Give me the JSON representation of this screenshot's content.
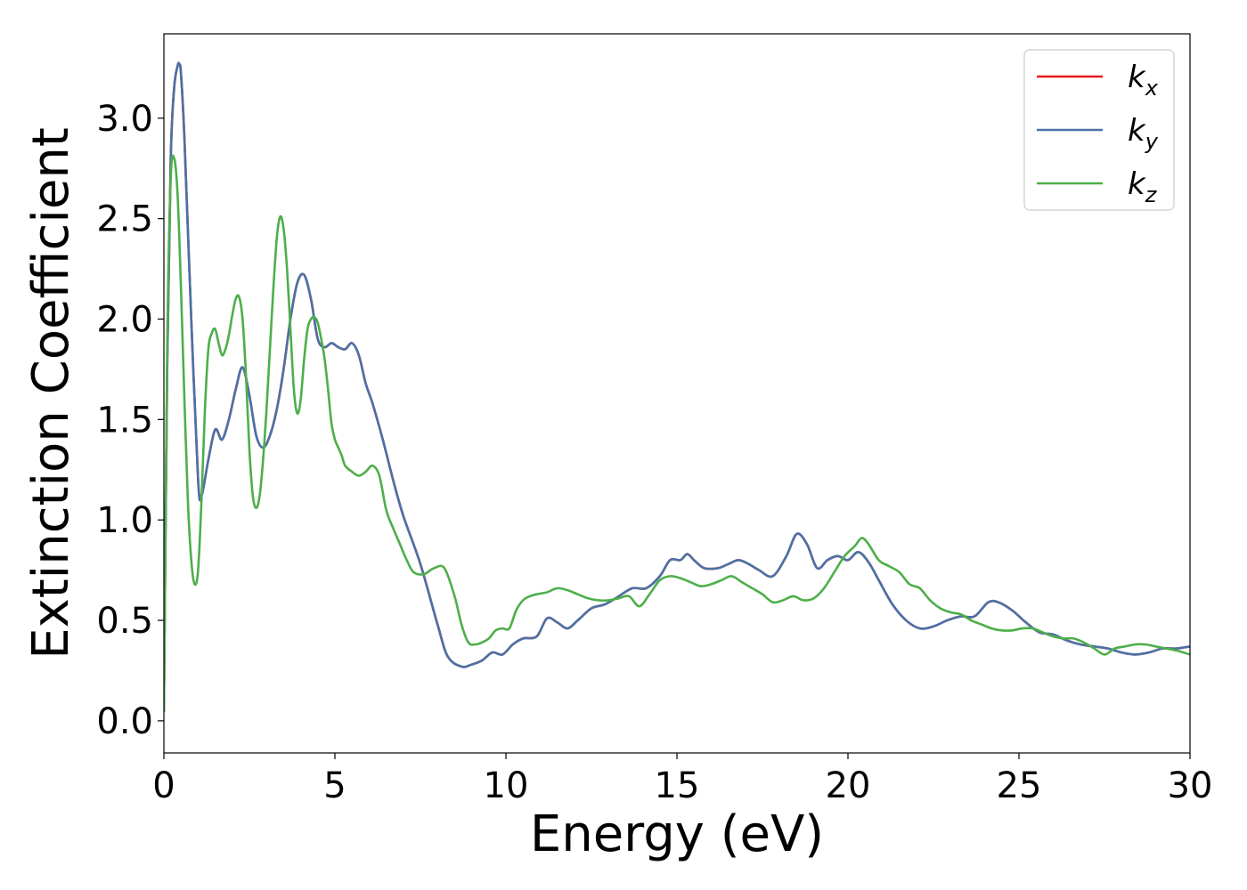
{
  "chart_data": {
    "type": "line",
    "xlabel": "Energy (eV)",
    "ylabel": "Extinction Coefficient",
    "xlim": [
      0,
      30
    ],
    "ylim": [
      -0.16,
      3.42
    ],
    "x_ticks": [
      0,
      5,
      10,
      15,
      20,
      25,
      30
    ],
    "x_tick_labels": [
      "0",
      "5",
      "10",
      "15",
      "20",
      "25",
      "30"
    ],
    "y_ticks": [
      0.0,
      0.5,
      1.0,
      1.5,
      2.0,
      2.5,
      3.0
    ],
    "y_tick_labels": [
      "0.0",
      "0.5",
      "1.0",
      "1.5",
      "2.0",
      "2.5",
      "3.0"
    ],
    "grid": false,
    "legend_position": "top-right",
    "series": [
      {
        "name": "k",
        "subscript": "x",
        "color": "#e41a1c",
        "x": [
          0,
          0.1,
          0.2,
          0.3,
          0.4,
          0.45,
          0.5,
          0.6,
          0.8,
          1.0,
          1.1,
          1.3,
          1.5,
          1.7,
          1.9,
          2.1,
          2.3,
          2.5,
          2.7,
          2.9,
          3.1,
          3.3,
          3.5,
          3.7,
          3.9,
          4.1,
          4.3,
          4.5,
          4.7,
          4.9,
          5.1,
          5.3,
          5.5,
          5.7,
          5.9,
          6.1,
          6.4,
          6.7,
          7.0,
          7.5,
          8.0,
          8.3,
          8.7,
          9.0,
          9.3,
          9.6,
          9.9,
          10.2,
          10.5,
          10.9,
          11.2,
          11.5,
          11.8,
          12.1,
          12.5,
          12.9,
          13.3,
          13.7,
          14.1,
          14.5,
          14.8,
          15.1,
          15.3,
          15.5,
          15.8,
          16.2,
          16.5,
          16.8,
          17.1,
          17.4,
          17.8,
          18.2,
          18.5,
          18.8,
          19.1,
          19.4,
          19.7,
          20.0,
          20.3,
          20.6,
          20.9,
          21.3,
          21.7,
          22.1,
          22.5,
          22.9,
          23.3,
          23.7,
          24.1,
          24.4,
          24.8,
          25.2,
          25.6,
          26.0,
          26.4,
          26.8,
          27.2,
          27.6,
          28.0,
          28.4,
          28.8,
          29.2,
          29.6,
          30.0
        ],
        "values": [
          0.05,
          1.8,
          2.8,
          3.15,
          3.26,
          3.27,
          3.22,
          2.9,
          2.0,
          1.2,
          1.12,
          1.3,
          1.45,
          1.4,
          1.5,
          1.65,
          1.76,
          1.62,
          1.42,
          1.36,
          1.42,
          1.55,
          1.75,
          2.0,
          2.18,
          2.22,
          2.1,
          1.9,
          1.86,
          1.88,
          1.86,
          1.85,
          1.88,
          1.82,
          1.68,
          1.58,
          1.4,
          1.2,
          1.02,
          0.78,
          0.48,
          0.32,
          0.27,
          0.28,
          0.3,
          0.34,
          0.33,
          0.38,
          0.41,
          0.42,
          0.51,
          0.49,
          0.46,
          0.5,
          0.56,
          0.58,
          0.62,
          0.66,
          0.66,
          0.72,
          0.8,
          0.8,
          0.83,
          0.8,
          0.76,
          0.76,
          0.78,
          0.8,
          0.78,
          0.75,
          0.72,
          0.82,
          0.93,
          0.88,
          0.76,
          0.8,
          0.82,
          0.8,
          0.84,
          0.79,
          0.7,
          0.58,
          0.5,
          0.46,
          0.47,
          0.5,
          0.52,
          0.52,
          0.59,
          0.59,
          0.55,
          0.49,
          0.44,
          0.43,
          0.4,
          0.38,
          0.37,
          0.36,
          0.34,
          0.33,
          0.34,
          0.36,
          0.36,
          0.37
        ]
      },
      {
        "name": "k",
        "subscript": "y",
        "color": "#4a72a6",
        "x": [
          0,
          0.1,
          0.2,
          0.3,
          0.4,
          0.45,
          0.5,
          0.6,
          0.8,
          1.0,
          1.1,
          1.3,
          1.5,
          1.7,
          1.9,
          2.1,
          2.3,
          2.5,
          2.7,
          2.9,
          3.1,
          3.3,
          3.5,
          3.7,
          3.9,
          4.1,
          4.3,
          4.5,
          4.7,
          4.9,
          5.1,
          5.3,
          5.5,
          5.7,
          5.9,
          6.1,
          6.4,
          6.7,
          7.0,
          7.5,
          8.0,
          8.3,
          8.7,
          9.0,
          9.3,
          9.6,
          9.9,
          10.2,
          10.5,
          10.9,
          11.2,
          11.5,
          11.8,
          12.1,
          12.5,
          12.9,
          13.3,
          13.7,
          14.1,
          14.5,
          14.8,
          15.1,
          15.3,
          15.5,
          15.8,
          16.2,
          16.5,
          16.8,
          17.1,
          17.4,
          17.8,
          18.2,
          18.5,
          18.8,
          19.1,
          19.4,
          19.7,
          20.0,
          20.3,
          20.6,
          20.9,
          21.3,
          21.7,
          22.1,
          22.5,
          22.9,
          23.3,
          23.7,
          24.1,
          24.4,
          24.8,
          25.2,
          25.6,
          26.0,
          26.4,
          26.8,
          27.2,
          27.6,
          28.0,
          28.4,
          28.8,
          29.2,
          29.6,
          30.0
        ],
        "values": [
          0.05,
          1.8,
          2.8,
          3.15,
          3.26,
          3.27,
          3.22,
          2.9,
          2.0,
          1.2,
          1.12,
          1.3,
          1.45,
          1.4,
          1.5,
          1.65,
          1.76,
          1.62,
          1.42,
          1.36,
          1.42,
          1.55,
          1.75,
          2.0,
          2.18,
          2.22,
          2.1,
          1.9,
          1.86,
          1.88,
          1.86,
          1.85,
          1.88,
          1.82,
          1.68,
          1.58,
          1.4,
          1.2,
          1.02,
          0.78,
          0.48,
          0.32,
          0.27,
          0.28,
          0.3,
          0.34,
          0.33,
          0.38,
          0.41,
          0.42,
          0.51,
          0.49,
          0.46,
          0.5,
          0.56,
          0.58,
          0.62,
          0.66,
          0.66,
          0.72,
          0.8,
          0.8,
          0.83,
          0.8,
          0.76,
          0.76,
          0.78,
          0.8,
          0.78,
          0.75,
          0.72,
          0.82,
          0.93,
          0.88,
          0.76,
          0.8,
          0.82,
          0.8,
          0.84,
          0.79,
          0.7,
          0.58,
          0.5,
          0.46,
          0.47,
          0.5,
          0.52,
          0.52,
          0.59,
          0.59,
          0.55,
          0.49,
          0.44,
          0.43,
          0.4,
          0.38,
          0.37,
          0.36,
          0.34,
          0.33,
          0.34,
          0.36,
          0.36,
          0.37
        ]
      },
      {
        "name": "k",
        "subscript": "z",
        "color": "#4daf4a",
        "x": [
          0,
          0.1,
          0.2,
          0.3,
          0.4,
          0.5,
          0.6,
          0.7,
          0.8,
          0.9,
          1.0,
          1.1,
          1.2,
          1.3,
          1.4,
          1.5,
          1.6,
          1.7,
          1.8,
          1.9,
          2.0,
          2.1,
          2.2,
          2.3,
          2.4,
          2.5,
          2.6,
          2.7,
          2.8,
          2.9,
          3.0,
          3.1,
          3.2,
          3.3,
          3.4,
          3.5,
          3.6,
          3.7,
          3.8,
          3.9,
          4.0,
          4.1,
          4.2,
          4.3,
          4.4,
          4.5,
          4.6,
          4.7,
          4.8,
          4.9,
          5.0,
          5.1,
          5.2,
          5.3,
          5.5,
          5.7,
          5.9,
          6.1,
          6.3,
          6.5,
          6.7,
          6.9,
          7.1,
          7.3,
          7.6,
          7.9,
          8.2,
          8.5,
          8.7,
          8.9,
          9.1,
          9.3,
          9.5,
          9.7,
          9.9,
          10.1,
          10.3,
          10.5,
          10.7,
          10.9,
          11.2,
          11.5,
          11.8,
          12.1,
          12.4,
          12.7,
          13.0,
          13.3,
          13.6,
          13.9,
          14.2,
          14.5,
          14.8,
          15.1,
          15.4,
          15.7,
          16.0,
          16.3,
          16.6,
          16.9,
          17.2,
          17.5,
          17.8,
          18.1,
          18.4,
          18.7,
          19.0,
          19.3,
          19.6,
          19.9,
          20.2,
          20.4,
          20.6,
          20.9,
          21.2,
          21.5,
          21.8,
          22.1,
          22.4,
          22.7,
          23.0,
          23.3,
          23.6,
          23.9,
          24.2,
          24.5,
          24.8,
          25.1,
          25.4,
          25.7,
          26.0,
          26.3,
          26.6,
          26.9,
          27.2,
          27.5,
          27.8,
          28.1,
          28.4,
          28.7,
          29.0,
          29.3,
          29.6,
          30.0
        ],
        "values": [
          0.05,
          1.9,
          2.7,
          2.8,
          2.62,
          2.15,
          1.6,
          1.1,
          0.8,
          0.68,
          0.75,
          1.1,
          1.55,
          1.85,
          1.93,
          1.95,
          1.88,
          1.82,
          1.85,
          1.92,
          2.02,
          2.1,
          2.11,
          2.0,
          1.72,
          1.35,
          1.12,
          1.06,
          1.12,
          1.3,
          1.55,
          1.85,
          2.15,
          2.4,
          2.51,
          2.45,
          2.25,
          1.95,
          1.65,
          1.53,
          1.6,
          1.8,
          1.95,
          2.0,
          2.01,
          1.98,
          1.9,
          1.8,
          1.65,
          1.48,
          1.4,
          1.36,
          1.32,
          1.27,
          1.24,
          1.22,
          1.24,
          1.27,
          1.22,
          1.05,
          0.96,
          0.88,
          0.8,
          0.74,
          0.73,
          0.76,
          0.76,
          0.62,
          0.48,
          0.39,
          0.38,
          0.39,
          0.41,
          0.45,
          0.46,
          0.46,
          0.55,
          0.6,
          0.62,
          0.63,
          0.64,
          0.66,
          0.65,
          0.63,
          0.61,
          0.6,
          0.6,
          0.61,
          0.62,
          0.57,
          0.63,
          0.7,
          0.72,
          0.71,
          0.69,
          0.67,
          0.68,
          0.7,
          0.72,
          0.69,
          0.66,
          0.63,
          0.59,
          0.6,
          0.62,
          0.6,
          0.61,
          0.66,
          0.74,
          0.82,
          0.87,
          0.91,
          0.88,
          0.8,
          0.77,
          0.74,
          0.68,
          0.66,
          0.6,
          0.56,
          0.54,
          0.53,
          0.5,
          0.48,
          0.46,
          0.45,
          0.45,
          0.46,
          0.46,
          0.44,
          0.42,
          0.41,
          0.41,
          0.39,
          0.36,
          0.33,
          0.36,
          0.37,
          0.38,
          0.38,
          0.37,
          0.36,
          0.35,
          0.33
        ]
      }
    ]
  }
}
